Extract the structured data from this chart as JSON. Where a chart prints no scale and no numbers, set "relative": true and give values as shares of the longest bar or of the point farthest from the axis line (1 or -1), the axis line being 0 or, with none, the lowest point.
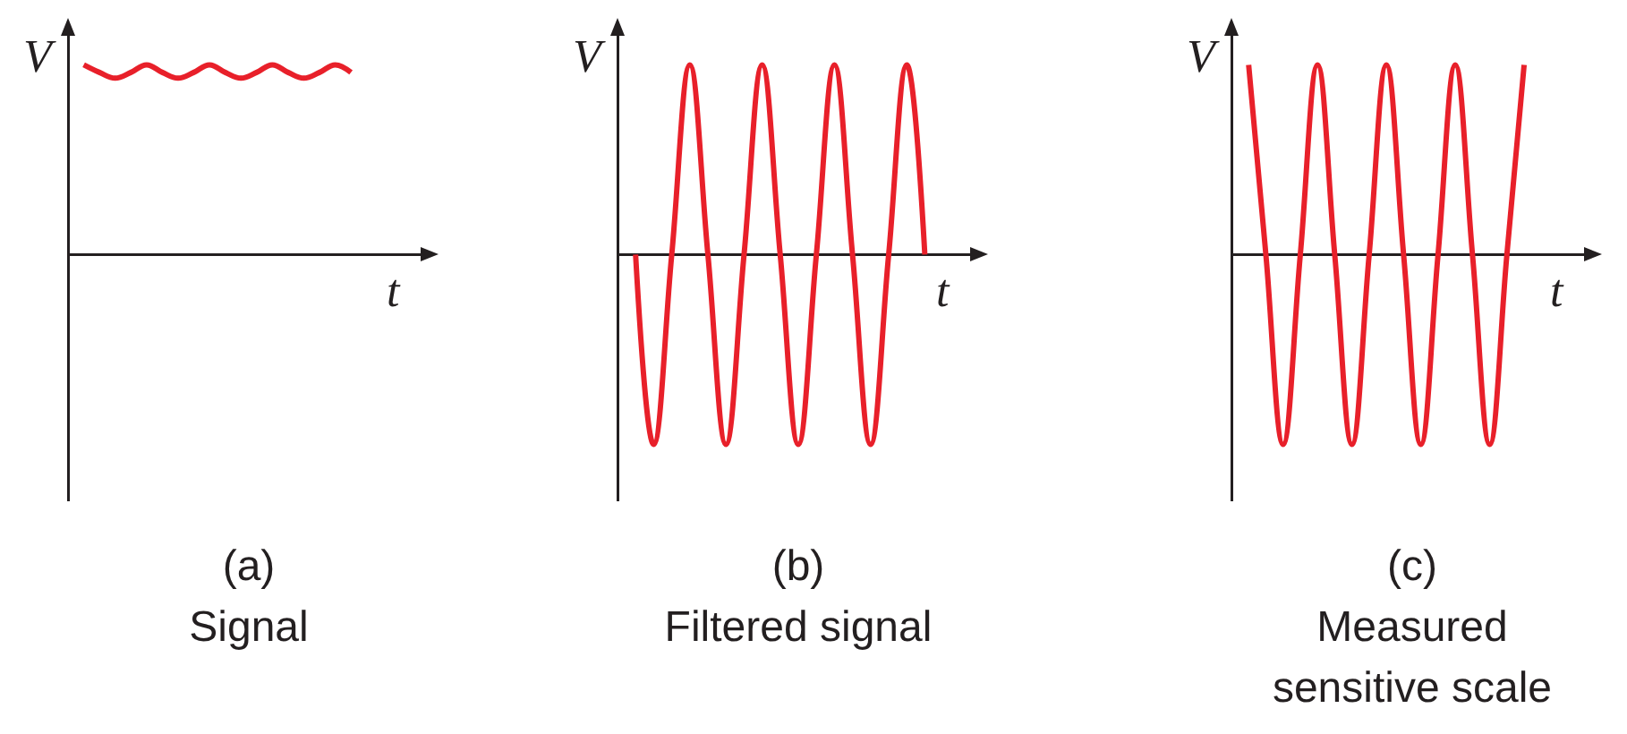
{
  "chart_data": [
    {
      "type": "line",
      "title": "(a)",
      "subtitle": "Signal",
      "xlabel": "t",
      "ylabel": "V",
      "relative": true,
      "categories": [
        null,
        null,
        null,
        null,
        null,
        null,
        null,
        null,
        null,
        null,
        null,
        null,
        null,
        null,
        null,
        null,
        null,
        null,
        null,
        null,
        null,
        null,
        null
      ],
      "series": [
        {
          "color": "#e8202a",
          "values": [
            null,
            1,
            0.96,
            0.93,
            0.96,
            1,
            0.96,
            0.93,
            0.96,
            1,
            0.96,
            0.93,
            0.96,
            1,
            0.96,
            0.93,
            0.96,
            1,
            0.96,
            null,
            null,
            null,
            null
          ]
        }
      ]
    },
    {
      "type": "line",
      "title": "(b)",
      "subtitle": "Filtered signal",
      "xlabel": "t",
      "ylabel": "V",
      "relative": true,
      "categories": [
        null,
        null,
        null,
        null,
        null,
        null,
        null,
        null,
        null,
        null,
        null,
        null,
        null,
        null,
        null,
        null,
        null,
        null,
        null,
        null
      ],
      "series": [
        {
          "color": "#e8202a",
          "values": [
            null,
            0,
            -1,
            0,
            1,
            0,
            -1,
            0,
            1,
            0,
            -1,
            0,
            1,
            0,
            -1,
            0,
            1,
            0,
            null,
            null
          ]
        }
      ]
    },
    {
      "type": "line",
      "title": "(c)",
      "subtitle": "Measured sensitive scale",
      "xlabel": "t",
      "ylabel": "V",
      "relative": true,
      "categories": [
        null,
        null,
        null,
        null,
        null,
        null,
        null,
        null,
        null,
        null,
        null,
        null,
        null,
        null,
        null,
        null,
        null,
        null,
        null,
        null,
        null
      ],
      "series": [
        {
          "color": "#e8202a",
          "values": [
            null,
            1,
            0,
            -1,
            0,
            1,
            0,
            -1,
            0,
            1,
            0,
            -1,
            0,
            1,
            0,
            -1,
            0,
            1,
            null,
            null,
            null
          ]
        }
      ]
    }
  ]
}
